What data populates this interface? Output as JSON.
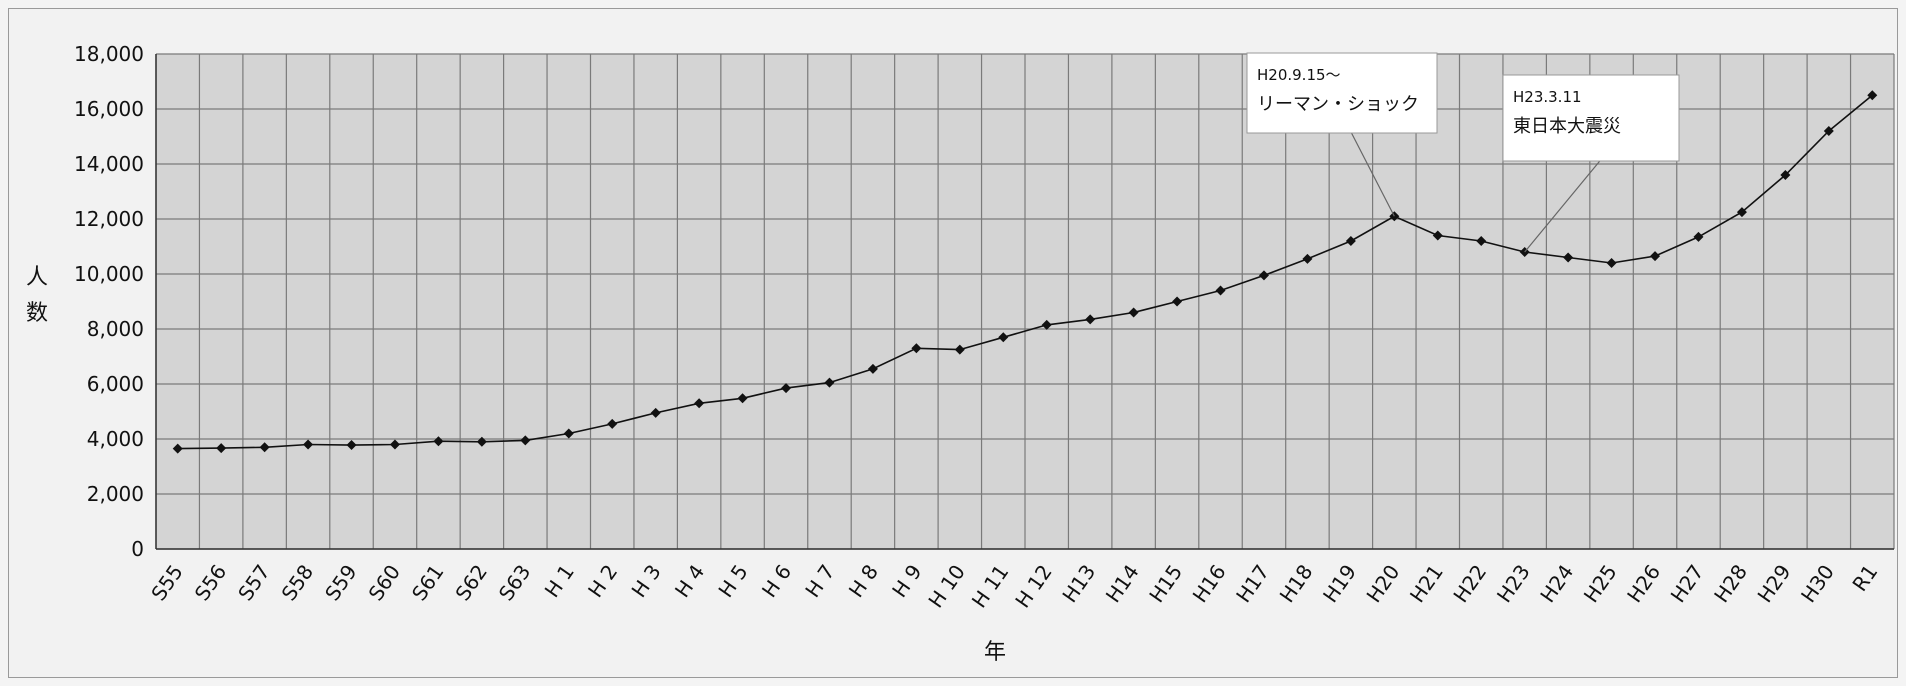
{
  "chart_data": {
    "type": "line",
    "title": "",
    "xlabel": "年",
    "ylabel": "人数",
    "ylim": [
      0,
      18000
    ],
    "yticks": [
      0,
      2000,
      4000,
      6000,
      8000,
      10000,
      12000,
      14000,
      16000,
      18000
    ],
    "ytick_labels": [
      "0",
      "2,000",
      "4,000",
      "6,000",
      "8,000",
      "10,000",
      "12,000",
      "14,000",
      "16,000",
      "18,000"
    ],
    "grid": true,
    "categories": [
      "S55",
      "S56",
      "S57",
      "S58",
      "S59",
      "S60",
      "S61",
      "S62",
      "S63",
      "H 1",
      "H 2",
      "H 3",
      "H 4",
      "H 5",
      "H 6",
      "H 7",
      "H 8",
      "H 9",
      "H 10",
      "H 11",
      "H 12",
      "H13",
      "H14",
      "H15",
      "H16",
      "H17",
      "H18",
      "H19",
      "H20",
      "H21",
      "H22",
      "H23",
      "H24",
      "H25",
      "H26",
      "H27",
      "H28",
      "H29",
      "H30",
      "R1"
    ],
    "series": [
      {
        "values": [
          3650,
          3670,
          3700,
          3800,
          3780,
          3800,
          3920,
          3900,
          3950,
          4200,
          4550,
          4950,
          5300,
          5480,
          5850,
          6050,
          6550,
          7300,
          7250,
          7700,
          8150,
          8350,
          8600,
          9000,
          9400,
          9950,
          10550,
          11200,
          12100,
          11400,
          11200,
          10800,
          10600,
          10400,
          10650,
          11350,
          12250,
          13600,
          15200,
          16500
        ],
        "color": "#111111"
      }
    ],
    "annotations": [
      {
        "lines": [
          "H20.9.15～",
          "リーマン・ショック"
        ],
        "target": "H20"
      },
      {
        "lines": [
          "H23.3.11",
          "東日本大震災"
        ],
        "target": "H23"
      }
    ]
  }
}
